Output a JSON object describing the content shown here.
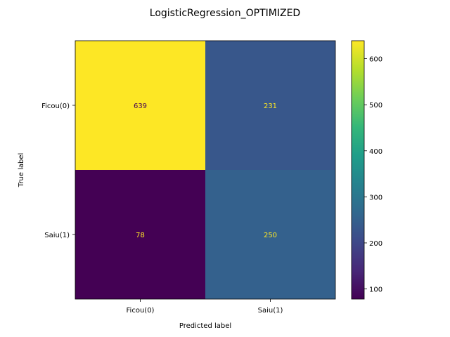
{
  "chart_data": {
    "type": "heatmap",
    "title": "LogisticRegression_OPTIMIZED",
    "xlabel": "Predicted label",
    "ylabel": "True label",
    "x_categories": [
      "Ficou(0)",
      "Saiu(1)"
    ],
    "y_categories": [
      "Ficou(0)",
      "Saiu(1)"
    ],
    "values": [
      [
        639,
        231
      ],
      [
        78,
        250
      ]
    ],
    "colormap": "viridis",
    "colorbar": {
      "min": 78,
      "max": 639,
      "ticks": [
        100,
        200,
        300,
        400,
        500,
        600
      ]
    },
    "grid": false
  }
}
